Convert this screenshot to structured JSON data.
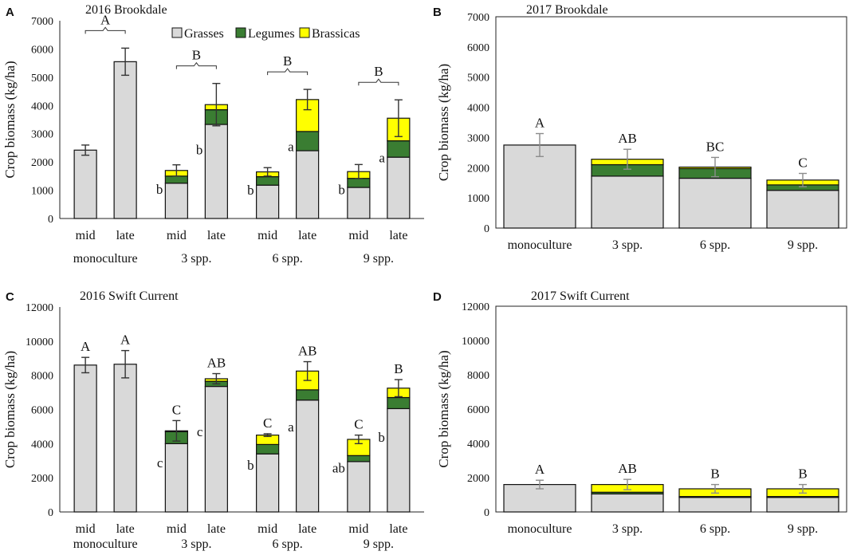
{
  "colors": {
    "grasses": "#d9d9d9",
    "legumes": "#3a7d32",
    "brassicas": "#ffff00",
    "outline": "#111111",
    "errorbar": "#333333",
    "errorbar_light": "#8c8c8c"
  },
  "legend": {
    "items": [
      "Grasses",
      "Legumes",
      "Brassicas"
    ]
  },
  "chart_data": [
    {
      "id": "A",
      "type": "bar",
      "stacked": true,
      "title": "2016 Brookdale",
      "panel_letter": "A",
      "ylabel": "Crop biomass (kg/ha)",
      "ylim": [
        0,
        7000
      ],
      "yticks": [
        0,
        1000,
        2000,
        3000,
        4000,
        5000,
        6000,
        7000
      ],
      "series": [
        "Grasses",
        "Legumes",
        "Brassicas"
      ],
      "groups": [
        {
          "label": "monoculture",
          "bars": [
            {
              "label": "mid",
              "values": [
                2420,
                0,
                0
              ],
              "err": 180,
              "letter": ""
            },
            {
              "label": "late",
              "values": [
                5550,
                0,
                0
              ],
              "err": 480,
              "letter": ""
            }
          ],
          "bracket_letter": "A"
        },
        {
          "label": "3 spp.",
          "bars": [
            {
              "label": "mid",
              "values": [
                1250,
                250,
                200
              ],
              "err": 200,
              "letter": "b"
            },
            {
              "label": "late",
              "values": [
                3330,
                520,
                180
              ],
              "err": 750,
              "letter": "b"
            }
          ],
          "bracket_letter": "B"
        },
        {
          "label": "6 spp.",
          "bars": [
            {
              "label": "mid",
              "values": [
                1180,
                300,
                170
              ],
              "err": 150,
              "letter": "b"
            },
            {
              "label": "late",
              "values": [
                2400,
                680,
                1130
              ],
              "err": 360,
              "letter": "a"
            }
          ],
          "bracket_letter": "B"
        },
        {
          "label": "9 spp.",
          "bars": [
            {
              "label": "mid",
              "values": [
                1100,
                320,
                240
              ],
              "err": 250,
              "letter": "b"
            },
            {
              "label": "late",
              "values": [
                2170,
                580,
                800
              ],
              "err": 650,
              "letter": "a"
            }
          ],
          "bracket_letter": "B"
        }
      ]
    },
    {
      "id": "B",
      "type": "bar",
      "stacked": true,
      "title": "2017 Brookdale",
      "panel_letter": "B",
      "ylabel": "Crop biomass (kg/ha)",
      "ylim": [
        0,
        7000
      ],
      "yticks": [
        0,
        1000,
        2000,
        3000,
        4000,
        5000,
        6000,
        7000
      ],
      "series": [
        "Grasses",
        "Legumes",
        "Brassicas"
      ],
      "bars": [
        {
          "label": "monoculture",
          "values": [
            2750,
            0,
            0
          ],
          "err": 380,
          "letter": "A"
        },
        {
          "label": "3 spp.",
          "values": [
            1720,
            380,
            180
          ],
          "err": 330,
          "letter": "AB"
        },
        {
          "label": "6 spp.",
          "values": [
            1650,
            320,
            50
          ],
          "err": 320,
          "letter": "BC"
        },
        {
          "label": "9 spp.",
          "values": [
            1250,
            180,
            160
          ],
          "err": 220,
          "letter": "C"
        }
      ]
    },
    {
      "id": "C",
      "type": "bar",
      "stacked": true,
      "title": "2016 Swift Current",
      "panel_letter": "C",
      "ylabel": "Crop biomass (kg/ha)",
      "ylim": [
        0,
        12000
      ],
      "yticks": [
        0,
        2000,
        4000,
        6000,
        8000,
        10000,
        12000
      ],
      "series": [
        "Grasses",
        "Legumes",
        "Brassicas"
      ],
      "groups": [
        {
          "label": "monoculture",
          "bars": [
            {
              "label": "mid",
              "values": [
                8600,
                0,
                0
              ],
              "err": 450,
              "letter": "",
              "top_letter": "A"
            },
            {
              "label": "late",
              "values": [
                8650,
                0,
                0
              ],
              "err": 800,
              "letter": "",
              "top_letter": "A"
            }
          ]
        },
        {
          "label": "3 spp.",
          "bars": [
            {
              "label": "mid",
              "values": [
                4000,
                700,
                50
              ],
              "err": 600,
              "letter": "c",
              "top_letter": "C"
            },
            {
              "label": "late",
              "values": [
                7350,
                300,
                150
              ],
              "err": 300,
              "letter": "c",
              "top_letter": "AB"
            }
          ]
        },
        {
          "label": "6 spp.",
          "bars": [
            {
              "label": "mid",
              "values": [
                3400,
                550,
                550
              ],
              "err": 80,
              "letter": "b",
              "top_letter": "C"
            },
            {
              "label": "late",
              "values": [
                6550,
                600,
                1100
              ],
              "err": 550,
              "letter": "a",
              "top_letter": "AB"
            }
          ]
        },
        {
          "label": "9 spp.",
          "bars": [
            {
              "label": "mid",
              "values": [
                2950,
                350,
                950
              ],
              "err": 250,
              "letter": "ab",
              "top_letter": "C"
            },
            {
              "label": "late",
              "values": [
                6050,
                650,
                550
              ],
              "err": 500,
              "letter": "b",
              "top_letter": "B"
            }
          ]
        }
      ]
    },
    {
      "id": "D",
      "type": "bar",
      "stacked": true,
      "title": "2017 Swift Current",
      "panel_letter": "D",
      "ylabel": "Crop biomass (kg/ha)",
      "ylim": [
        0,
        12000
      ],
      "yticks": [
        0,
        2000,
        4000,
        6000,
        8000,
        10000,
        12000
      ],
      "series": [
        "Grasses",
        "Legumes",
        "Brassicas"
      ],
      "bars": [
        {
          "label": "monoculture",
          "values": [
            1600,
            0,
            0
          ],
          "err": 250,
          "letter": "A"
        },
        {
          "label": "3 spp.",
          "values": [
            1050,
            100,
            450
          ],
          "err": 300,
          "letter": "AB"
        },
        {
          "label": "6 spp.",
          "values": [
            850,
            50,
            450
          ],
          "err": 250,
          "letter": "B"
        },
        {
          "label": "9 spp.",
          "values": [
            850,
            50,
            450
          ],
          "err": 250,
          "letter": "B"
        }
      ]
    }
  ]
}
